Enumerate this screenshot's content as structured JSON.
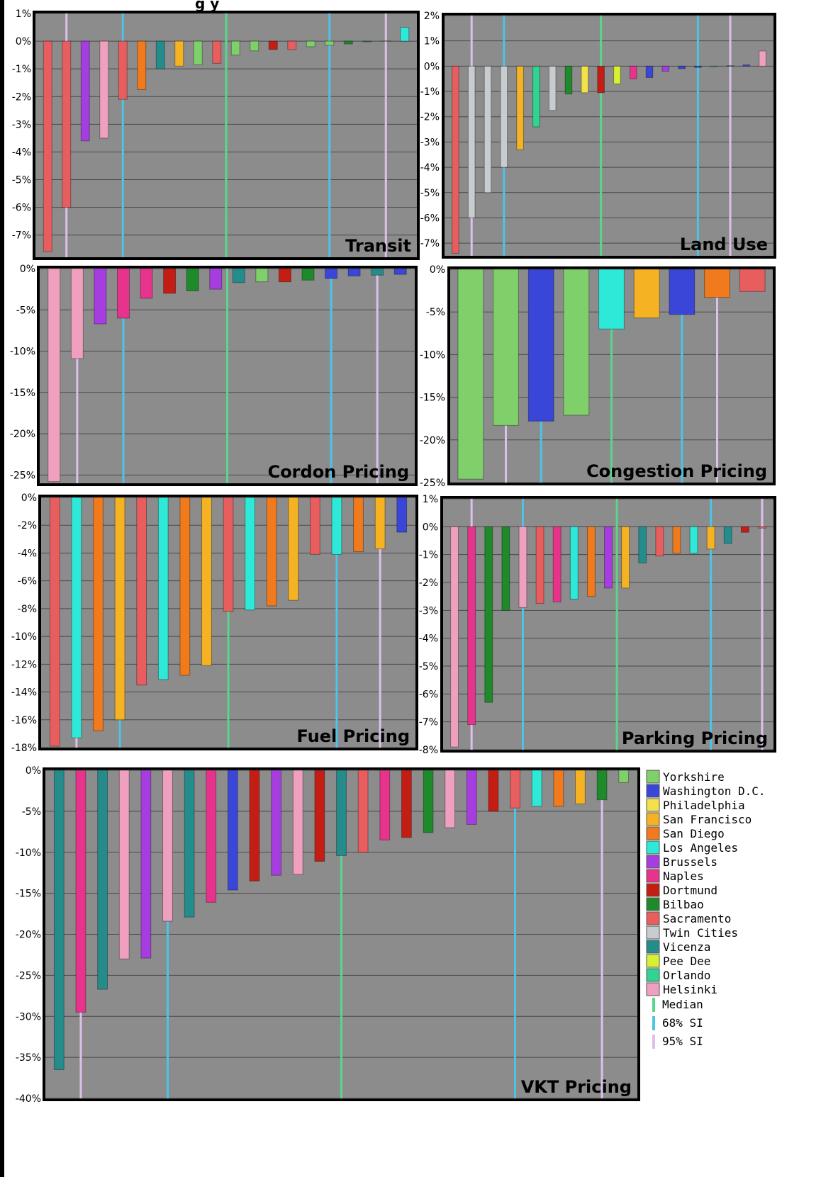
{
  "page": {
    "header_fragment": "g   y"
  },
  "city_colors": {
    "Yorkshire": "#7fd06b",
    "Washington D.C.": "#3a46d8",
    "Philadelphia": "#f2e14a",
    "San Francisco": "#f5b324",
    "San Diego": "#f07a1c",
    "Los Angeles": "#2ee8d8",
    "Brussels": "#a63de0",
    "Naples": "#e8338c",
    "Dortmund": "#c41d14",
    "Bilbao": "#1f8a2a",
    "Sacramento": "#e85e5e",
    "Twin Cities": "#c9cccf",
    "Vicenza": "#258c8c",
    "Pee Dee": "#d6f032",
    "Orlando": "#2ed490",
    "Helsinki": "#f0a0bf"
  },
  "indicator_colors": {
    "Median": "#59d68a",
    "68% SI": "#4cc4e6",
    "95% SI": "#dcc0ec"
  },
  "legend": {
    "cities": [
      "Yorkshire",
      "Washington D.C.",
      "Philadelphia",
      "San Francisco",
      "San Diego",
      "Los Angeles",
      "Brussels",
      "Naples",
      "Dortmund",
      "Bilbao",
      "Sacramento",
      "Twin Cities",
      "Vicenza",
      "Pee Dee",
      "Orlando",
      "Helsinki"
    ],
    "indicators": [
      "Median",
      "68% SI",
      "95% SI"
    ]
  },
  "chart_data": [
    {
      "type": "bar",
      "title": "Transit",
      "ylim": [
        -7.8,
        1
      ],
      "unit": "%",
      "ticks": [
        1,
        0,
        -1,
        -2,
        -3,
        -4,
        -5,
        -6,
        -7
      ],
      "tick_labels": [
        "1%",
        "0%",
        "-1%",
        "-2%",
        "-3%",
        "-4%",
        "-5%",
        "-6%",
        "-7%"
      ],
      "series": [
        {
          "name": "Sacramento",
          "value": -7.6
        },
        {
          "name": "Sacramento",
          "value": -6.0
        },
        {
          "name": "Brussels",
          "value": -3.6
        },
        {
          "name": "Helsinki",
          "value": -3.5
        },
        {
          "name": "Sacramento",
          "value": -2.1
        },
        {
          "name": "San Diego",
          "value": -1.75
        },
        {
          "name": "Vicenza",
          "value": -1.0
        },
        {
          "name": "San Francisco",
          "value": -0.9
        },
        {
          "name": "Yorkshire",
          "value": -0.85
        },
        {
          "name": "Sacramento",
          "value": -0.8
        },
        {
          "name": "Yorkshire",
          "value": -0.5
        },
        {
          "name": "Yorkshire",
          "value": -0.35
        },
        {
          "name": "Dortmund",
          "value": -0.3
        },
        {
          "name": "Sacramento",
          "value": -0.3
        },
        {
          "name": "Yorkshire",
          "value": -0.2
        },
        {
          "name": "Yorkshire",
          "value": -0.15
        },
        {
          "name": "Bilbao",
          "value": -0.1
        },
        {
          "name": "Vicenza",
          "value": -0.02
        },
        {
          "name": "Yorkshire",
          "value": 0.02
        },
        {
          "name": "Los Angeles",
          "value": 0.5
        }
      ],
      "indicators": [
        {
          "name": "95% SI",
          "index": 1
        },
        {
          "name": "68% SI",
          "index": 4
        },
        {
          "name": "Median",
          "index": 9.5
        },
        {
          "name": "68% SI",
          "index": 15
        },
        {
          "name": "95% SI",
          "index": 18
        }
      ]
    },
    {
      "type": "bar",
      "title": "Land Use",
      "ylim": [
        -7.5,
        2
      ],
      "unit": "%",
      "ticks": [
        2,
        1,
        0,
        -1,
        -2,
        -3,
        -4,
        -5,
        -6,
        -7
      ],
      "tick_labels": [
        "2%",
        "1%",
        "0%",
        "-1%",
        "-2%",
        "-3%",
        "-4%",
        "-5%",
        "-6%",
        "-7%"
      ],
      "series": [
        {
          "name": "Sacramento",
          "value": -7.4
        },
        {
          "name": "Twin Cities",
          "value": -6.0
        },
        {
          "name": "Twin Cities",
          "value": -5.0
        },
        {
          "name": "Twin Cities",
          "value": -4.0
        },
        {
          "name": "San Francisco",
          "value": -3.3
        },
        {
          "name": "Orlando",
          "value": -2.4
        },
        {
          "name": "Twin Cities",
          "value": -1.75
        },
        {
          "name": "Bilbao",
          "value": -1.1
        },
        {
          "name": "Philadelphia",
          "value": -1.05
        },
        {
          "name": "Dortmund",
          "value": -1.05
        },
        {
          "name": "Pee Dee",
          "value": -0.7
        },
        {
          "name": "Naples",
          "value": -0.5
        },
        {
          "name": "Washington D.C.",
          "value": -0.45
        },
        {
          "name": "Brussels",
          "value": -0.2
        },
        {
          "name": "Washington D.C.",
          "value": -0.1
        },
        {
          "name": "Washington D.C.",
          "value": -0.05
        },
        {
          "name": "Orlando",
          "value": -0.02
        },
        {
          "name": "Vicenza",
          "value": 0.02
        },
        {
          "name": "Washington D.C.",
          "value": 0.05
        },
        {
          "name": "Helsinki",
          "value": 0.6
        }
      ],
      "indicators": [
        {
          "name": "95% SI",
          "index": 1
        },
        {
          "name": "68% SI",
          "index": 3
        },
        {
          "name": "Median",
          "index": 9
        },
        {
          "name": "68% SI",
          "index": 15
        },
        {
          "name": "95% SI",
          "index": 17
        }
      ]
    },
    {
      "type": "bar",
      "title": "Cordon Pricing",
      "ylim": [
        -26,
        0
      ],
      "unit": "%",
      "ticks": [
        0,
        -5,
        -10,
        -15,
        -20,
        -25
      ],
      "tick_labels": [
        "0%",
        "-5%",
        "-10%",
        "-15%",
        "-20%",
        "-25%"
      ],
      "series": [
        {
          "name": "Helsinki",
          "value": -25.8
        },
        {
          "name": "Helsinki",
          "value": -10.9
        },
        {
          "name": "Brussels",
          "value": -6.7
        },
        {
          "name": "Naples",
          "value": -6.0
        },
        {
          "name": "Naples",
          "value": -3.6
        },
        {
          "name": "Dortmund",
          "value": -3.0
        },
        {
          "name": "Bilbao",
          "value": -2.7
        },
        {
          "name": "Brussels",
          "value": -2.5
        },
        {
          "name": "Vicenza",
          "value": -1.7
        },
        {
          "name": "Yorkshire",
          "value": -1.6
        },
        {
          "name": "Dortmund",
          "value": -1.6
        },
        {
          "name": "Bilbao",
          "value": -1.4
        },
        {
          "name": "Washington D.C.",
          "value": -1.2
        },
        {
          "name": "Washington D.C.",
          "value": -0.9
        },
        {
          "name": "Vicenza",
          "value": -0.8
        },
        {
          "name": "Washington D.C.",
          "value": -0.7
        }
      ],
      "indicators": [
        {
          "name": "95% SI",
          "index": 1
        },
        {
          "name": "68% SI",
          "index": 3
        },
        {
          "name": "Median",
          "index": 7.5
        },
        {
          "name": "68% SI",
          "index": 12
        },
        {
          "name": "95% SI",
          "index": 14
        }
      ]
    },
    {
      "type": "bar",
      "title": "Congestion Pricing",
      "ylim": [
        -25,
        0
      ],
      "unit": "%",
      "ticks": [
        0,
        -5,
        -10,
        -15,
        -20,
        -25
      ],
      "tick_labels": [
        "0%",
        "-5%",
        "-10%",
        "-15%",
        "-20%",
        "-25%"
      ],
      "series": [
        {
          "name": "Yorkshire",
          "value": -24.6
        },
        {
          "name": "Yorkshire",
          "value": -18.3
        },
        {
          "name": "Washington D.C.",
          "value": -17.8
        },
        {
          "name": "Yorkshire",
          "value": -17.1
        },
        {
          "name": "Los Angeles",
          "value": -7.0
        },
        {
          "name": "San Francisco",
          "value": -5.7
        },
        {
          "name": "Washington D.C.",
          "value": -5.3
        },
        {
          "name": "San Diego",
          "value": -3.3
        },
        {
          "name": "Sacramento",
          "value": -2.6
        }
      ],
      "indicators": [
        {
          "name": "95% SI",
          "index": 1
        },
        {
          "name": "68% SI",
          "index": 2
        },
        {
          "name": "Median",
          "index": 4
        },
        {
          "name": "68% SI",
          "index": 6
        },
        {
          "name": "95% SI",
          "index": 7
        }
      ]
    },
    {
      "type": "bar",
      "title": "Fuel Pricing",
      "ylim": [
        -18,
        0
      ],
      "unit": "%",
      "ticks": [
        0,
        -2,
        -4,
        -6,
        -8,
        -10,
        -12,
        -14,
        -16,
        -18
      ],
      "tick_labels": [
        "0%",
        "-2%",
        "-4%",
        "-6%",
        "-8%",
        "-10%",
        "-12%",
        "-14%",
        "-16%",
        "-18%"
      ],
      "series": [
        {
          "name": "Sacramento",
          "value": -17.9
        },
        {
          "name": "Los Angeles",
          "value": -17.3
        },
        {
          "name": "San Diego",
          "value": -16.8
        },
        {
          "name": "San Francisco",
          "value": -16.0
        },
        {
          "name": "Sacramento",
          "value": -13.5
        },
        {
          "name": "Los Angeles",
          "value": -13.1
        },
        {
          "name": "San Diego",
          "value": -12.8
        },
        {
          "name": "San Francisco",
          "value": -12.1
        },
        {
          "name": "Sacramento",
          "value": -8.2
        },
        {
          "name": "Los Angeles",
          "value": -8.1
        },
        {
          "name": "San Diego",
          "value": -7.8
        },
        {
          "name": "San Francisco",
          "value": -7.4
        },
        {
          "name": "Sacramento",
          "value": -4.1
        },
        {
          "name": "Los Angeles",
          "value": -4.1
        },
        {
          "name": "San Diego",
          "value": -3.9
        },
        {
          "name": "San Francisco",
          "value": -3.7
        },
        {
          "name": "Washington D.C.",
          "value": -2.5
        }
      ],
      "indicators": [
        {
          "name": "95% SI",
          "index": 1
        },
        {
          "name": "68% SI",
          "index": 3
        },
        {
          "name": "Median",
          "index": 8
        },
        {
          "name": "68% SI",
          "index": 13
        },
        {
          "name": "95% SI",
          "index": 15
        }
      ]
    },
    {
      "type": "bar",
      "title": "Parking Pricing",
      "ylim": [
        -8,
        1
      ],
      "unit": "%",
      "ticks": [
        1,
        0,
        -1,
        -2,
        -3,
        -4,
        -5,
        -6,
        -7,
        -8
      ],
      "tick_labels": [
        "1%",
        "0%",
        "-1%",
        "-2%",
        "-3%",
        "-4%",
        "-5%",
        "-6%",
        "-7%",
        "-8%"
      ],
      "series": [
        {
          "name": "Helsinki",
          "value": -7.9
        },
        {
          "name": "Naples",
          "value": -7.1
        },
        {
          "name": "Bilbao",
          "value": -6.3
        },
        {
          "name": "Bilbao",
          "value": -3.0
        },
        {
          "name": "Helsinki",
          "value": -2.9
        },
        {
          "name": "Sacramento",
          "value": -2.75
        },
        {
          "name": "Naples",
          "value": -2.7
        },
        {
          "name": "Los Angeles",
          "value": -2.6
        },
        {
          "name": "San Diego",
          "value": -2.5
        },
        {
          "name": "Brussels",
          "value": -2.2
        },
        {
          "name": "San Francisco",
          "value": -2.2
        },
        {
          "name": "Vicenza",
          "value": -1.3
        },
        {
          "name": "Sacramento",
          "value": -1.05
        },
        {
          "name": "San Diego",
          "value": -0.95
        },
        {
          "name": "Los Angeles",
          "value": -0.95
        },
        {
          "name": "San Francisco",
          "value": -0.8
        },
        {
          "name": "Vicenza",
          "value": -0.6
        },
        {
          "name": "Dortmund",
          "value": -0.2
        },
        {
          "name": "Sacramento",
          "value": -0.05
        }
      ],
      "indicators": [
        {
          "name": "95% SI",
          "index": 1
        },
        {
          "name": "68% SI",
          "index": 4
        },
        {
          "name": "Median",
          "index": 9.5
        },
        {
          "name": "68% SI",
          "index": 15
        },
        {
          "name": "95% SI",
          "index": 18
        }
      ]
    },
    {
      "type": "bar",
      "title": "VKT Pricing",
      "ylim": [
        -40,
        0
      ],
      "unit": "%",
      "ticks": [
        0,
        -5,
        -10,
        -15,
        -20,
        -25,
        -30,
        -35,
        -40
      ],
      "tick_labels": [
        "0%",
        "-5%",
        "-10%",
        "-15%",
        "-20%",
        "-25%",
        "-30%",
        "-35%",
        "-40%"
      ],
      "series": [
        {
          "name": "Vicenza",
          "value": -36.5
        },
        {
          "name": "Naples",
          "value": -29.5
        },
        {
          "name": "Vicenza",
          "value": -26.7
        },
        {
          "name": "Helsinki",
          "value": -23.0
        },
        {
          "name": "Brussels",
          "value": -22.9
        },
        {
          "name": "Helsinki",
          "value": -18.4
        },
        {
          "name": "Vicenza",
          "value": -17.9
        },
        {
          "name": "Naples",
          "value": -16.1
        },
        {
          "name": "Washington D.C.",
          "value": -14.6
        },
        {
          "name": "Dortmund",
          "value": -13.5
        },
        {
          "name": "Brussels",
          "value": -12.8
        },
        {
          "name": "Helsinki",
          "value": -12.7
        },
        {
          "name": "Dortmund",
          "value": -11.1
        },
        {
          "name": "Vicenza",
          "value": -10.4
        },
        {
          "name": "Sacramento",
          "value": -10.0
        },
        {
          "name": "Naples",
          "value": -8.5
        },
        {
          "name": "Dortmund",
          "value": -8.2
        },
        {
          "name": "Bilbao",
          "value": -7.6
        },
        {
          "name": "Helsinki",
          "value": -7.0
        },
        {
          "name": "Brussels",
          "value": -6.6
        },
        {
          "name": "Dortmund",
          "value": -5.0
        },
        {
          "name": "Sacramento",
          "value": -4.6
        },
        {
          "name": "Los Angeles",
          "value": -4.4
        },
        {
          "name": "San Diego",
          "value": -4.4
        },
        {
          "name": "San Francisco",
          "value": -4.1
        },
        {
          "name": "Bilbao",
          "value": -3.6
        },
        {
          "name": "Yorkshire",
          "value": -1.5
        }
      ],
      "indicators": [
        {
          "name": "95% SI",
          "index": 1
        },
        {
          "name": "68% SI",
          "index": 5
        },
        {
          "name": "Median",
          "index": 13
        },
        {
          "name": "68% SI",
          "index": 21
        },
        {
          "name": "95% SI",
          "index": 25
        }
      ]
    }
  ]
}
